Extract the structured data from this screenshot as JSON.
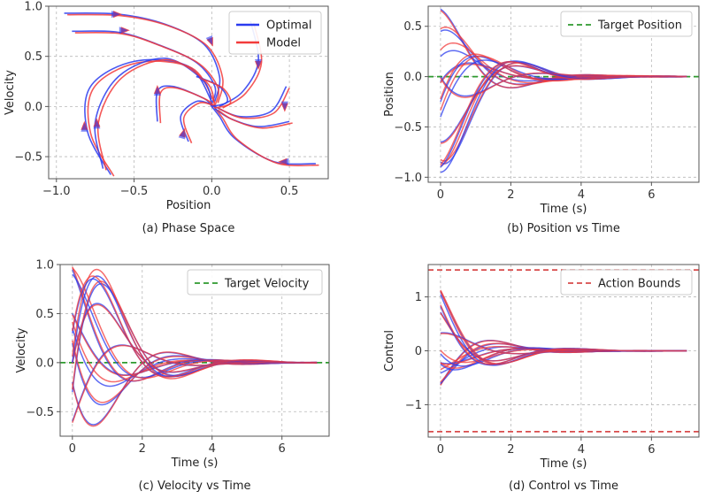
{
  "colors": {
    "optimal": "#2a3bef",
    "model": "#f23b3b",
    "overlap": "#a01a55",
    "target": "#2e9a2e",
    "bounds": "#d84b4b"
  },
  "chart_data": [
    {
      "id": "phase",
      "type": "line",
      "caption": "(a) Phase Space",
      "xlabel": "Position",
      "ylabel": "Velocity",
      "xlim": [
        -1.05,
        0.75
      ],
      "ylim": [
        -0.72,
        1.0
      ],
      "xticks": [
        -1.0,
        -0.5,
        0.0,
        0.5
      ],
      "xtick_labels": [
        "−1.0",
        "−0.5",
        "0.0",
        "0.5"
      ],
      "yticks": [
        -0.5,
        0.0,
        0.5,
        1.0
      ],
      "ytick_labels": [
        "−0.5",
        "0.0",
        "0.5",
        "1.0"
      ],
      "grid": true,
      "legend": {
        "position": "top-right",
        "entries": [
          {
            "label": "Optimal",
            "color_key": "optimal"
          },
          {
            "label": "Model",
            "color_key": "model"
          }
        ]
      },
      "series": [
        {
          "points": [
            [
              -0.95,
              0.93
            ],
            [
              -0.6,
              0.92
            ],
            [
              -0.3,
              0.82
            ],
            [
              -0.05,
              0.62
            ],
            [
              0.05,
              0.3
            ],
            [
              0.02,
              0.05
            ]
          ]
        },
        {
          "points": [
            [
              -0.9,
              0.75
            ],
            [
              -0.6,
              0.74
            ],
            [
              -0.35,
              0.62
            ],
            [
              -0.1,
              0.44
            ],
            [
              0.02,
              0.2
            ],
            [
              0.0,
              0.02
            ]
          ]
        },
        {
          "points": [
            [
              -0.65,
              -0.68
            ],
            [
              -0.8,
              -0.25
            ],
            [
              -0.78,
              0.2
            ],
            [
              -0.5,
              0.45
            ],
            [
              -0.15,
              0.4
            ],
            [
              0.0,
              0.05
            ]
          ]
        },
        {
          "points": [
            [
              -0.7,
              -0.62
            ],
            [
              -0.75,
              -0.15
            ],
            [
              -0.6,
              0.3
            ],
            [
              -0.3,
              0.48
            ],
            [
              -0.05,
              0.25
            ],
            [
              0.0,
              0.0
            ]
          ]
        },
        {
          "points": [
            [
              -0.35,
              -0.15
            ],
            [
              -0.35,
              0.15
            ],
            [
              -0.25,
              0.2
            ],
            [
              -0.05,
              0.08
            ],
            [
              0.0,
              0.0
            ]
          ]
        },
        {
          "points": [
            [
              -0.15,
              -0.35
            ],
            [
              -0.2,
              -0.1
            ],
            [
              -0.1,
              0.05
            ],
            [
              0.0,
              0.02
            ]
          ]
        },
        {
          "points": [
            [
              0.67,
              -0.57
            ],
            [
              0.4,
              -0.55
            ],
            [
              0.15,
              -0.32
            ],
            [
              0.05,
              -0.1
            ],
            [
              0.0,
              0.0
            ]
          ]
        },
        {
          "points": [
            [
              0.5,
              -0.15
            ],
            [
              0.3,
              -0.2
            ],
            [
              0.12,
              -0.12
            ],
            [
              0.02,
              -0.02
            ]
          ]
        },
        {
          "points": [
            [
              0.25,
              0.85
            ],
            [
              0.3,
              0.45
            ],
            [
              0.2,
              0.15
            ],
            [
              0.05,
              0.0
            ]
          ]
        },
        {
          "points": [
            [
              0.48,
              0.2
            ],
            [
              0.38,
              -0.05
            ],
            [
              0.18,
              -0.1
            ],
            [
              0.02,
              0.0
            ]
          ]
        },
        {
          "points": [
            [
              -0.1,
              0.3
            ],
            [
              0.05,
              0.2
            ],
            [
              0.1,
              0.05
            ],
            [
              0.0,
              0.0
            ]
          ]
        }
      ],
      "arrows": [
        {
          "at": [
            -0.6,
            0.92
          ],
          "dir": [
            1,
            0
          ]
        },
        {
          "at": [
            -0.55,
            0.76
          ],
          "dir": [
            1,
            0
          ]
        },
        {
          "at": [
            0.0,
            0.63
          ],
          "dir": [
            0.4,
            -1
          ]
        },
        {
          "at": [
            0.3,
            0.4
          ],
          "dir": [
            0,
            -1
          ]
        },
        {
          "at": [
            -0.82,
            -0.18
          ],
          "dir": [
            0,
            1
          ]
        },
        {
          "at": [
            -0.74,
            -0.15
          ],
          "dir": [
            0,
            1
          ]
        },
        {
          "at": [
            -0.35,
            0.18
          ],
          "dir": [
            0,
            1
          ]
        },
        {
          "at": [
            -0.18,
            -0.25
          ],
          "dir": [
            0.3,
            1
          ]
        },
        {
          "at": [
            0.45,
            -0.55
          ],
          "dir": [
            -1,
            0
          ]
        },
        {
          "at": [
            0.47,
            -0.02
          ],
          "dir": [
            0,
            -1
          ]
        }
      ]
    },
    {
      "id": "position",
      "type": "line",
      "caption": "(b) Position vs Time",
      "xlabel": "Time (s)",
      "ylabel": "Position",
      "xlim": [
        -0.35,
        7.35
      ],
      "ylim": [
        -1.05,
        0.7
      ],
      "xticks": [
        0,
        2,
        4,
        6
      ],
      "xtick_labels": [
        "0",
        "2",
        "4",
        "6"
      ],
      "yticks": [
        -1.0,
        -0.5,
        0.0,
        0.5
      ],
      "ytick_labels": [
        "−1.0",
        "−0.5",
        "0.0",
        "0.5"
      ],
      "grid": true,
      "reference_lines": [
        {
          "y": 0.0,
          "color_key": "target",
          "label": "Target Position"
        }
      ],
      "legend": {
        "position": "top-right",
        "entries": [
          {
            "label": "Target Position",
            "color_key": "target"
          }
        ]
      },
      "series": [
        {
          "y0": 0.67,
          "v0": -0.2
        },
        {
          "y0": 0.45,
          "v0": 0.2
        },
        {
          "y0": 0.2,
          "v0": 0.35
        },
        {
          "y0": -0.05,
          "v0": 0.5
        },
        {
          "y0": -0.25,
          "v0": 0.95
        },
        {
          "y0": -0.4,
          "v0": 0.9
        },
        {
          "y0": -0.65,
          "v0": 0.0
        },
        {
          "y0": -0.85,
          "v0": -0.3
        },
        {
          "y0": -0.95,
          "v0": 0.0
        },
        {
          "y0": 0.0,
          "v0": -0.6
        },
        {
          "y0": -0.9,
          "v0": 0.3
        }
      ]
    },
    {
      "id": "velocity",
      "type": "line",
      "caption": "(c) Velocity vs Time",
      "xlabel": "Time (s)",
      "ylabel": "Velocity",
      "xlim": [
        -0.35,
        7.35
      ],
      "ylim": [
        -0.75,
        1.0
      ],
      "xticks": [
        0,
        2,
        4,
        6
      ],
      "xtick_labels": [
        "0",
        "2",
        "4",
        "6"
      ],
      "yticks": [
        -0.5,
        0.0,
        0.5,
        1.0
      ],
      "ytick_labels": [
        "−0.5",
        "0.0",
        "0.5",
        "1.0"
      ],
      "grid": true,
      "reference_lines": [
        {
          "y": 0.0,
          "color_key": "target",
          "label": "Target Velocity"
        }
      ],
      "legend": {
        "position": "top-right",
        "entries": [
          {
            "label": "Target Velocity",
            "color_key": "target"
          }
        ]
      }
    },
    {
      "id": "control",
      "type": "line",
      "caption": "(d) Control vs Time",
      "xlabel": "Time (s)",
      "ylabel": "Control",
      "xlim": [
        -0.35,
        7.35
      ],
      "ylim": [
        -1.6,
        1.6
      ],
      "xticks": [
        0,
        2,
        4,
        6
      ],
      "xtick_labels": [
        "0",
        "2",
        "4",
        "6"
      ],
      "yticks": [
        -1,
        0,
        1
      ],
      "ytick_labels": [
        "−1",
        "0",
        "1"
      ],
      "grid": true,
      "reference_lines": [
        {
          "y": 1.5,
          "color_key": "bounds",
          "label": "Action Bounds"
        },
        {
          "y": -1.5,
          "color_key": "bounds",
          "label": "Action Bounds"
        }
      ],
      "legend": {
        "position": "top-right",
        "entries": [
          {
            "label": "Action Bounds",
            "color_key": "bounds"
          }
        ]
      }
    }
  ]
}
